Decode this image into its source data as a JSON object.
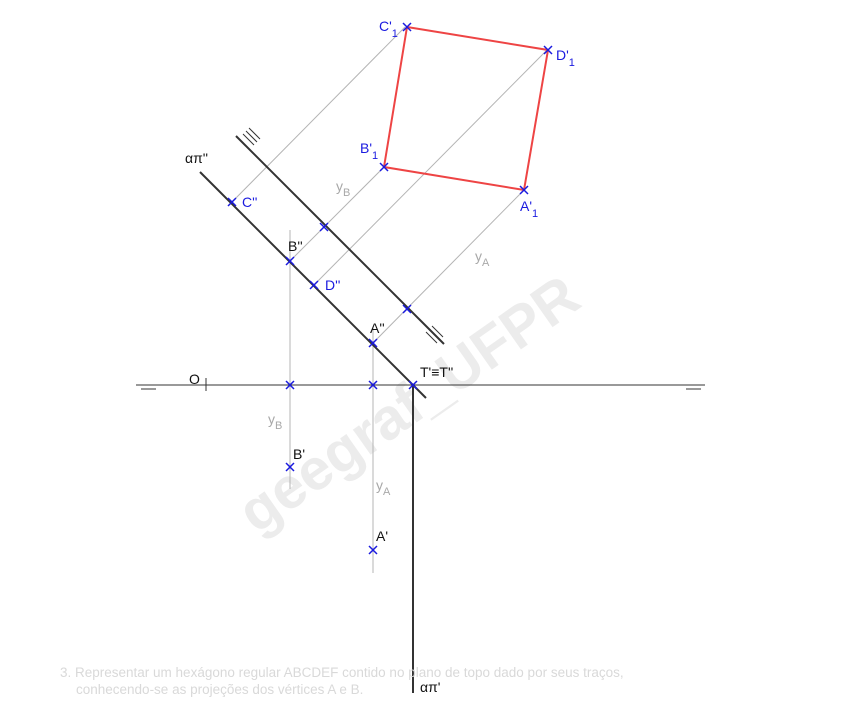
{
  "watermark": "geegraf_UFPR",
  "labels": {
    "origin": "O",
    "trace_h": "απ''",
    "trace_v": "απ'",
    "t_point": "T'≡T''",
    "a_front": "A''",
    "b_front": "B''",
    "c_front": "C''",
    "d_front": "D''",
    "a_top": "A'",
    "b_top": "B'",
    "c1": {
      "base": "C'",
      "sub": "1"
    },
    "d1": {
      "base": "D'",
      "sub": "1"
    },
    "b1": {
      "base": "B'",
      "sub": "1"
    },
    "a1": {
      "base": "A'",
      "sub": "1"
    },
    "yb_upper": {
      "base": "y",
      "sub": "B"
    },
    "ya_upper": {
      "base": "y",
      "sub": "A"
    },
    "yb_lower": {
      "base": "y",
      "sub": "B"
    },
    "ya_lower": {
      "base": "y",
      "sub": "A"
    }
  },
  "caption": {
    "line1": "3.  Representar um hexágono regular ABCDEF contido no plano de topo dado por seus traços,",
    "line2": "conhecendo-se as projeções dos vértices A e B."
  },
  "colors": {
    "line": "#333333",
    "construction": "#b4b4b4",
    "point": "#1a1adf",
    "polygon": "#ee4444"
  }
}
